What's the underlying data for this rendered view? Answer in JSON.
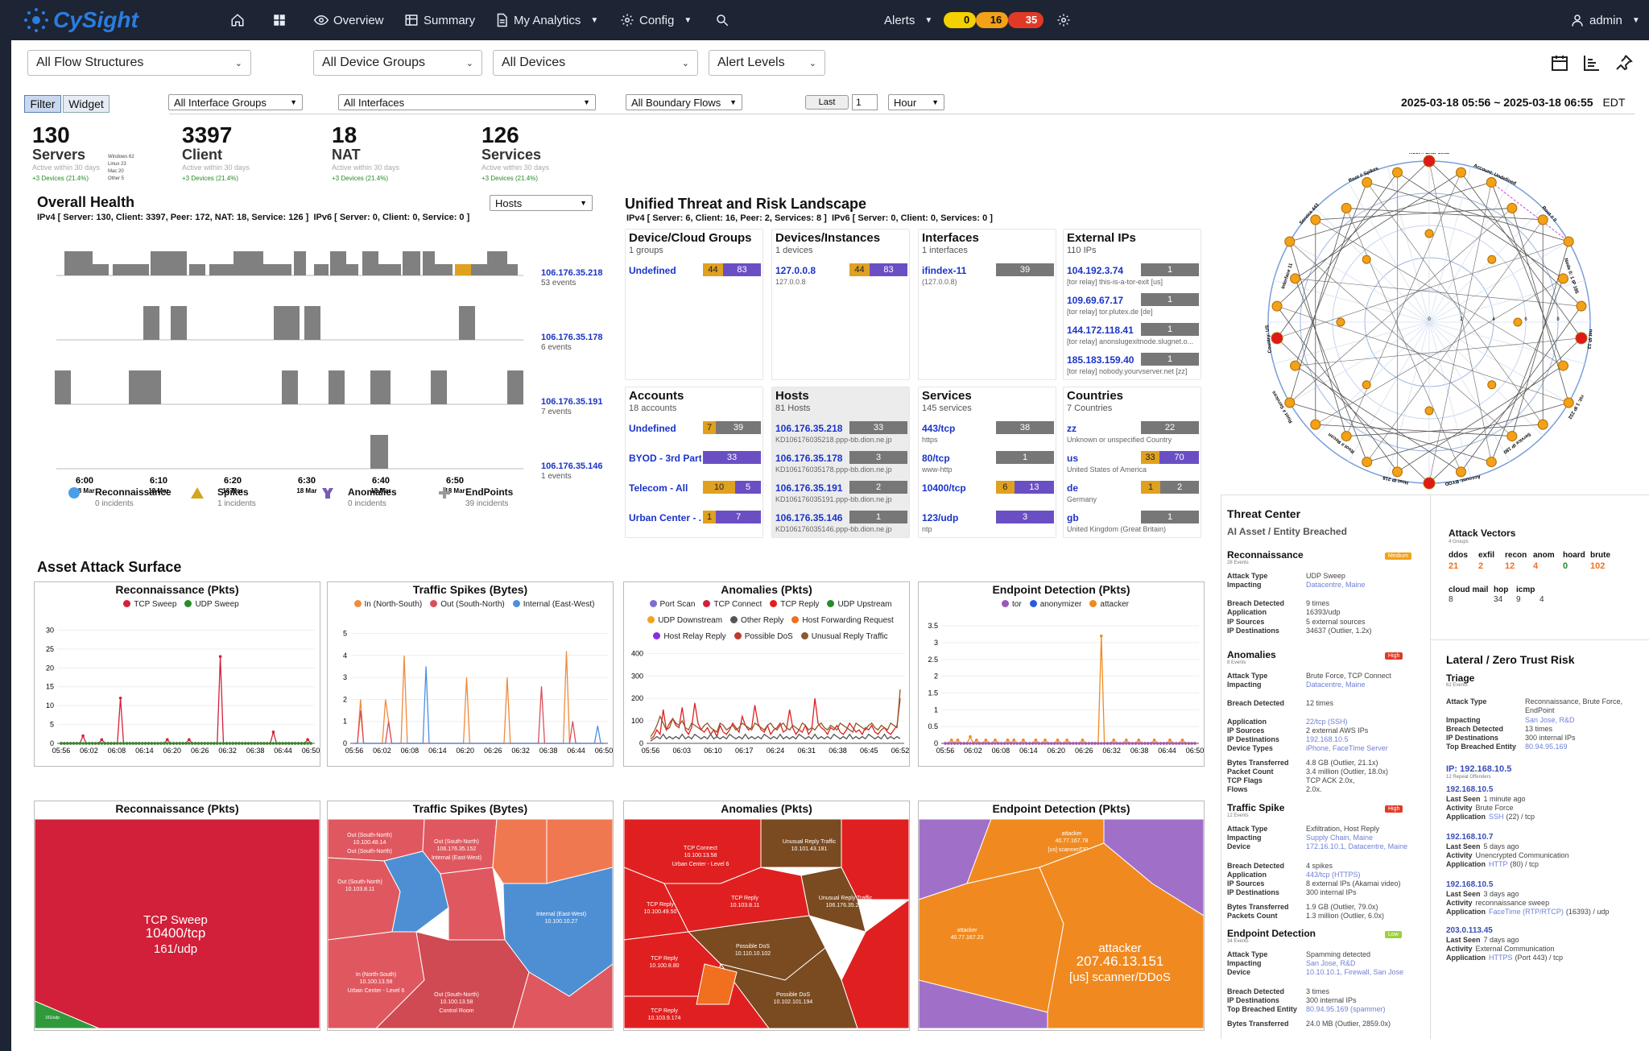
{
  "app": {
    "logo": "CySight",
    "user": "admin"
  },
  "nav": {
    "overview": "Overview",
    "summary": "Summary",
    "analytics": "My Analytics",
    "config": "Config",
    "alerts": "Alerts",
    "alert_counts": [
      "0",
      "16",
      "35"
    ],
    "alert_colors": [
      "#f5d000",
      "#f2a118",
      "#e03a26"
    ]
  },
  "filters": {
    "flow": "All Flow Structures",
    "device_groups": "All Device Groups",
    "devices": "All Devices",
    "alert_levels": "Alert Levels",
    "tab_filter": "Filter",
    "tab_widget": "Widget",
    "iface_groups": "All Interface Groups",
    "ifaces": "All Interfaces",
    "boundary": "All Boundary Flows",
    "last": "Last",
    "last_n": "1",
    "unit": "Hour",
    "range": "2025-03-18 05:56 ~ 2025-03-18 06:55",
    "tz": "EDT"
  },
  "stats": [
    {
      "num": "130",
      "label": "Servers",
      "sub": "Active within 30 days",
      "growth": "+3 Devices (21.4%)"
    },
    {
      "num": "3397",
      "label": "Client",
      "sub": "Active within 30 days",
      "growth": "+3 Devices (21.4%)"
    },
    {
      "num": "18",
      "label": "NAT",
      "sub": "Active within 30 days",
      "growth": "+3 Devices (21.4%)"
    },
    {
      "num": "126",
      "label": "Services",
      "sub": "Active within 30 days",
      "growth": "+3 Devices (21.4%)"
    }
  ],
  "os_list": [
    "Windows 62",
    "Linux 23",
    "Mac 20",
    "Other 5"
  ],
  "health": {
    "title": "Overall Health",
    "select": "Hosts",
    "ipv4": "IPv4 [ Server: 130, Client: 3397, Peer: 172, NAT: 18, Service: 126 ]",
    "ipv6": "IPv6 [ Server: 0, Client: 0, Service: 0 ]",
    "rows": [
      {
        "ip": "106.176.35.218",
        "ev": "53 events"
      },
      {
        "ip": "106.176.35.178",
        "ev": "6 events"
      },
      {
        "ip": "106.176.35.191",
        "ev": "7 events"
      },
      {
        "ip": "106.176.35.146",
        "ev": "1 events"
      }
    ],
    "xticks": [
      {
        "t": "6:00",
        "d": "18 Mar"
      },
      {
        "t": "6:10",
        "d": "18 Mar"
      },
      {
        "t": "6:20",
        "d": "18 Mar"
      },
      {
        "t": "6:30",
        "d": "18 Mar"
      },
      {
        "t": "6:40",
        "d": "18 Mar"
      },
      {
        "t": "6:50",
        "d": "18 Mar"
      }
    ],
    "legend": [
      {
        "name": "Reconnaissance",
        "sub": "0 incidents",
        "icon": "circle-icon"
      },
      {
        "name": "Spikes",
        "sub": "1 incidents",
        "icon": "triangle-icon"
      },
      {
        "name": "Anomalies",
        "sub": "0 incidents",
        "icon": "anomaly-icon"
      },
      {
        "name": "EndPoints",
        "sub": "39 incidents",
        "icon": "plus-icon"
      }
    ]
  },
  "utrl": {
    "title": "Unified Threat and Risk Landscape",
    "ipv4": "IPv4 [ Server: 6, Client: 16, Peer: 2, Services: 8 ]",
    "ipv6": "IPv6 [ Server: 0, Client: 0, Services: 0 ]",
    "cards": [
      {
        "title": "Device/Cloud Groups",
        "sub": "1 groups",
        "rows": [
          {
            "name": "Undefined",
            "sub": "",
            "segs": [
              [
                "44",
                "#e0a020"
              ],
              [
                "83",
                "#6a4fc4"
              ]
            ]
          }
        ]
      },
      {
        "title": "Devices/Instances",
        "sub": "1 devices",
        "rows": [
          {
            "name": "127.0.0.8",
            "sub": "127.0.0.8",
            "segs": [
              [
                "44",
                "#e0a020"
              ],
              [
                "83",
                "#6a4fc4"
              ]
            ]
          }
        ]
      },
      {
        "title": "Interfaces",
        "sub": "1 interfaces",
        "rows": [
          {
            "name": "ifindex-11",
            "sub": "(127.0.0.8)",
            "segs": [
              [
                "39",
                "#777"
              ]
            ]
          }
        ]
      },
      {
        "title": "External IPs",
        "sub": "110 IPs",
        "rows": [
          {
            "name": "104.192.3.74",
            "sub": "[tor relay] this-is-a-tor-exit [us]",
            "segs": [
              [
                "1",
                "#777"
              ]
            ]
          },
          {
            "name": "109.69.67.17",
            "sub": "[tor relay] tor.plutex.de [de]",
            "segs": [
              [
                "1",
                "#777"
              ]
            ]
          },
          {
            "name": "144.172.118.41",
            "sub": "[tor relay] anonslugexitnode.slugnet.o...",
            "segs": [
              [
                "1",
                "#777"
              ]
            ]
          },
          {
            "name": "185.183.159.40",
            "sub": "[tor relay] nobody.yourvserver.net [zz]",
            "segs": [
              [
                "1",
                "#777"
              ]
            ]
          }
        ]
      },
      {
        "title": "Accounts",
        "sub": "18 accounts",
        "rows": [
          {
            "name": "Undefined",
            "sub": "",
            "segs": [
              [
                "7",
                "#e0a020"
              ],
              [
                "39",
                "#777"
              ]
            ]
          },
          {
            "name": "BYOD - 3rd Part...",
            "sub": "",
            "segs": [
              [
                "33",
                "#6a4fc4"
              ]
            ]
          },
          {
            "name": "Telecom - All",
            "sub": "",
            "segs": [
              [
                "10",
                "#e0a020"
              ],
              [
                "5",
                "#6a4fc4"
              ]
            ]
          },
          {
            "name": "Urban Center - ...",
            "sub": "",
            "segs": [
              [
                "1",
                "#e0a020"
              ],
              [
                "7",
                "#6a4fc4"
              ]
            ]
          }
        ]
      },
      {
        "title": "Hosts",
        "sub": "81 Hosts",
        "rows": [
          {
            "name": "106.176.35.218",
            "sub": "KD106176035218.ppp-bb.dion.ne.jp",
            "segs": [
              [
                "33",
                "#777"
              ]
            ]
          },
          {
            "name": "106.176.35.178",
            "sub": "KD106176035178.ppp-bb.dion.ne.jp",
            "segs": [
              [
                "3",
                "#777"
              ]
            ]
          },
          {
            "name": "106.176.35.191",
            "sub": "KD106176035191.ppp-bb.dion.ne.jp",
            "segs": [
              [
                "2",
                "#777"
              ]
            ]
          },
          {
            "name": "106.176.35.146",
            "sub": "KD106176035146.ppp-bb.dion.ne.jp",
            "segs": [
              [
                "1",
                "#777"
              ]
            ]
          }
        ]
      },
      {
        "title": "Services",
        "sub": "145 services",
        "rows": [
          {
            "name": "443/tcp",
            "sub": "https",
            "segs": [
              [
                "38",
                "#777"
              ]
            ]
          },
          {
            "name": "80/tcp",
            "sub": "www-http",
            "segs": [
              [
                "1",
                "#777"
              ]
            ]
          },
          {
            "name": "10400/tcp",
            "sub": "",
            "segs": [
              [
                "6",
                "#e0a020"
              ],
              [
                "13",
                "#6a4fc4"
              ]
            ]
          },
          {
            "name": "123/udp",
            "sub": "ntp",
            "segs": [
              [
                "3",
                "#6a4fc4"
              ]
            ]
          }
        ]
      },
      {
        "title": "Countries",
        "sub": "7 Countries",
        "rows": [
          {
            "name": "zz",
            "sub": "Unknown or unspecified Country",
            "segs": [
              [
                "22",
                "#777"
              ]
            ]
          },
          {
            "name": "us",
            "sub": "United States of America",
            "segs": [
              [
                "33",
                "#e0a020"
              ],
              [
                "70",
                "#6a4fc4"
              ]
            ]
          },
          {
            "name": "de",
            "sub": "Germany",
            "segs": [
              [
                "1",
                "#e0a020"
              ],
              [
                "2",
                "#777"
              ]
            ]
          },
          {
            "name": "gb",
            "sub": "United Kingdom (Great Britain)",
            "segs": [
              [
                "1",
                "#777"
              ]
            ]
          }
        ]
      }
    ]
  },
  "asset": {
    "title": "Asset Attack Surface"
  },
  "charts": [
    {
      "title": "Reconnaissance (Pkts)",
      "legend": [
        {
          "n": "TCP Sweep",
          "c": "#d4203a"
        },
        {
          "n": "UDP Sweep",
          "c": "#2a8a2a"
        }
      ]
    },
    {
      "title": "Traffic Spikes (Bytes)",
      "legend": [
        {
          "n": "In (North-South)",
          "c": "#f08a3c"
        },
        {
          "n": "Out (South-North)",
          "c": "#d94f5c"
        },
        {
          "n": "Internal (East-West)",
          "c": "#4a90e2"
        }
      ]
    },
    {
      "title": "Anomalies (Pkts)",
      "legend": [
        {
          "n": "Port Scan",
          "c": "#7a6fd0"
        },
        {
          "n": "TCP Connect",
          "c": "#d4203a"
        },
        {
          "n": "TCP Reply",
          "c": "#e02020"
        },
        {
          "n": "UDP Upstream",
          "c": "#2a8a2a"
        },
        {
          "n": "UDP Downstream",
          "c": "#f5a020"
        },
        {
          "n": "Other Reply",
          "c": "#555"
        },
        {
          "n": "Host Forwarding Request",
          "c": "#f07020"
        },
        {
          "n": "Host Relay Reply",
          "c": "#8a2be2"
        },
        {
          "n": "Possible DoS",
          "c": "#c0392b"
        },
        {
          "n": "Unusual Reply Traffic",
          "c": "#8b5a2b"
        }
      ]
    },
    {
      "title": "Endpoint Detection (Pkts)",
      "legend": [
        {
          "n": "tor",
          "c": "#9b59b6"
        },
        {
          "n": "anonymizer",
          "c": "#2a5bd7"
        },
        {
          "n": "attacker",
          "c": "#f08a20"
        }
      ]
    }
  ],
  "chart_yticks": [
    [
      "0",
      "5",
      "10",
      "15",
      "20",
      "25",
      "30"
    ],
    [
      "0",
      "1",
      "2",
      "3",
      "4",
      "5"
    ],
    [
      "0",
      "100",
      "200",
      "300",
      "400"
    ],
    [
      "0",
      "0.5",
      "1",
      "1.5",
      "2",
      "2.5",
      "3",
      "3.5"
    ]
  ],
  "chart_xticks": [
    [
      "05:56",
      "06:02",
      "06:08",
      "06:14",
      "06:20",
      "06:26",
      "06:32",
      "06:38",
      "06:44",
      "06:50"
    ],
    [
      "05:56",
      "06:02",
      "06:08",
      "06:14",
      "06:20",
      "06:26",
      "06:32",
      "06:38",
      "06:44",
      "06:50"
    ],
    [
      "05:56",
      "06:03",
      "06:10",
      "06:17",
      "06:24",
      "06:31",
      "06:38",
      "06:45",
      "06:52"
    ],
    [
      "05:56",
      "06:02",
      "06:08",
      "06:14",
      "06:20",
      "06:26",
      "06:32",
      "06:38",
      "06:44",
      "06:50"
    ]
  ],
  "treemaps": [
    {
      "title": "Reconnaissance (Pkts)",
      "cells": [
        {
          "l1": "TCP Sweep",
          "l2": "10400/tcp"
        },
        {
          "l1": "161/udp",
          "l2": ""
        }
      ]
    },
    {
      "title": "Traffic Spikes (Bytes)",
      "cells": [
        {
          "l1": "Out (South-North)",
          "l2": "10.100.48.14"
        },
        {
          "l1": "Out (South-North)",
          "l2": "106.176.35.152"
        },
        {
          "l1": "Internal (East-West)",
          "l2": "106.176.35.152"
        },
        {
          "l1": "Internal (East-West)",
          "l2": "10.100.10.27"
        },
        {
          "l1": "In (North-South)",
          "l2": "10.100.13.58"
        },
        {
          "l1": "Urban Center - Level 6",
          "l2": ""
        },
        {
          "l1": "Out (South-North)",
          "l2": "10.103.8.11"
        },
        {
          "l1": "Out (South-North)",
          "l2": "10.100.13.58"
        },
        {
          "l1": "Control Room",
          "l2": ""
        }
      ]
    },
    {
      "title": "Anomalies (Pkts)",
      "cells": [
        {
          "l1": "TCP Connect",
          "l2": "10.100.13.58"
        },
        {
          "l1": "Urban Center - Level 6",
          "l2": ""
        },
        {
          "l1": "Unusual Reply Traffic",
          "l2": "10.101.43.181"
        },
        {
          "l1": "TCP Reply",
          "l2": "10.100.49.50"
        },
        {
          "l1": "TCP Reply",
          "l2": "10.103.8.11"
        },
        {
          "l1": "Unusual Reply Traffic",
          "l2": "106.176.35.217"
        },
        {
          "l1": "TCP Reply",
          "l2": "10.100.8.80"
        },
        {
          "l1": "Possible DoS",
          "l2": "10.110.10.102"
        },
        {
          "l1": "Possible DoS",
          "l2": "10.102.101.194"
        },
        {
          "l1": "TCP Reply",
          "l2": "10.103.9.174"
        }
      ]
    },
    {
      "title": "Endpoint Detection (Pkts)",
      "cells": [
        {
          "l1": "attacker",
          "l2": "40.77.167.78"
        },
        {
          "l1": "[us] scanner/DDoS",
          "l2": ""
        },
        {
          "l1": "attacker",
          "l2": "40.77.167.23"
        },
        {
          "l1": "attacker",
          "l2": "207.46.13.151"
        },
        {
          "l1": "[us] scanner/DDoS",
          "l2": ""
        }
      ]
    }
  ],
  "radar": {
    "labels": [
      "Root # EndPoints",
      "Account: Undefined",
      "Root # 0",
      "Node 0: 1 IP 185",
      "nat IP 13",
      "rst: 1 IP 232",
      "Service IP 180",
      "Account: BYOD",
      "Host IP 218",
      "Root # Recon",
      "Root # Services",
      "Country: US",
      "Interface 11",
      "Service 443",
      "Root # Spikes"
    ],
    "rings": [
      "0",
      "2",
      "4",
      "6",
      "8"
    ]
  },
  "threat": {
    "title": "Threat Center",
    "sub": "AI Asset / Entity Breached",
    "recon": {
      "name": "Reconnaissance",
      "badge": "Medium",
      "ev": "28 Events",
      "attack": "UDP Sweep",
      "impacting": "Datacentre, Maine",
      "breach": "9 times",
      "app": "16393/udp",
      "ipsrc": "5 external sources",
      "ipdst": "34637 (Outlier, 1.2x)"
    },
    "anom": {
      "name": "Anomalies",
      "badge": "High",
      "ev": "8 Events",
      "attack": "Brute Force, TCP Connect",
      "impacting": "Datacentre, Maine",
      "breach": "12 times",
      "app": "22/tcp (SSH)",
      "ipsrc": "2 external AWS IPs",
      "ipdst": "192.168.10.5",
      "dtypes": "iPhone, FaceTime Server",
      "bytes": "4.8 GB (Outlier, 21.1x)",
      "pkts": "3.4 million (Outlier, 18.0x)",
      "flags": "TCP ACK 2.0x,",
      "flows": "2.0x."
    },
    "spike": {
      "name": "Traffic Spike",
      "badge": "High",
      "ev": "12 Events",
      "attack": "Exfiltration, Host Reply",
      "impacting": "Supply Chain, Maine",
      "device": "172.16.10.1, Datacentre, Maine",
      "breach": "4 spikes",
      "app": "443/tcp (HTTPS)",
      "ipsrc": "8 external IPs (Akamai video)",
      "ipdst": "300 internal IPs",
      "bytes": "1.9 GB (Outlier, 79.0x)",
      "pkts": "1.3 million (Outlier, 6.0x)"
    },
    "endp": {
      "name": "Endpoint Detection",
      "badge": "Low",
      "ev": "34 Events",
      "attack": "Spamming detected",
      "impacting": "San Jose, R&D",
      "device": "10.10.10.1, Firewall, San Jose",
      "breach": "3 times",
      "ipdst": "300 internal IPs",
      "top": "80.94.95.169 (spammer)",
      "bytes": "24.0 MB (Outlier, 2859.0x)"
    }
  },
  "vectors": {
    "title": "Attack Vectors",
    "sub": "4 Groups",
    "row1": [
      {
        "n": "ddos",
        "v": "21",
        "c": "#f07020"
      },
      {
        "n": "exfil",
        "v": "2",
        "c": "#f07020"
      },
      {
        "n": "recon",
        "v": "12",
        "c": "#f07020"
      },
      {
        "n": "anom",
        "v": "4",
        "c": "#f07020"
      },
      {
        "n": "hoard",
        "v": "0",
        "c": "#2a8a2a"
      },
      {
        "n": "brute",
        "v": "102",
        "c": "#f07020"
      }
    ],
    "row2": [
      {
        "n": "cloud mail",
        "v": "8"
      },
      {
        "n": "hop",
        "v": "34"
      },
      {
        "n": "icmp",
        "v": "9"
      },
      {
        "n": "",
        "v": "4"
      }
    ]
  },
  "lateral": {
    "title": "Lateral / Zero Trust Risk",
    "triage": "Triage",
    "tev": "62 Events",
    "attack": "Reconnaissance, Brute Force, EndPoint",
    "impacting": "San Jose, R&D",
    "breach": "13 times",
    "ipdst": "300 internal IPs",
    "top": "80.94.95.169",
    "ip": "IP: 192.168.10.5",
    "ipsub": "12 Repeat Offenders",
    "entries": [
      {
        "ip": "192.168.10.5",
        "seen": "1 minute ago",
        "act": "Brute Force",
        "app": "SSH",
        "appx": "(22) / tcp"
      },
      {
        "ip": "192.168.10.7",
        "seen": "5 days ago",
        "act": "Unencrypted Communication",
        "app": "HTTP",
        "appx": "(80) / tcp"
      },
      {
        "ip": "192.168.10.5",
        "seen": "3 days ago",
        "act": "reconnaissance sweep",
        "app": "FaceTime (RTP/RTCP)",
        "appx": "(16393) / udp"
      },
      {
        "ip": "203.0.113.45",
        "seen": "7 days ago",
        "act": "External Communication",
        "app": "HTTPS",
        "appx": "(Port 443) / tcp"
      }
    ]
  }
}
